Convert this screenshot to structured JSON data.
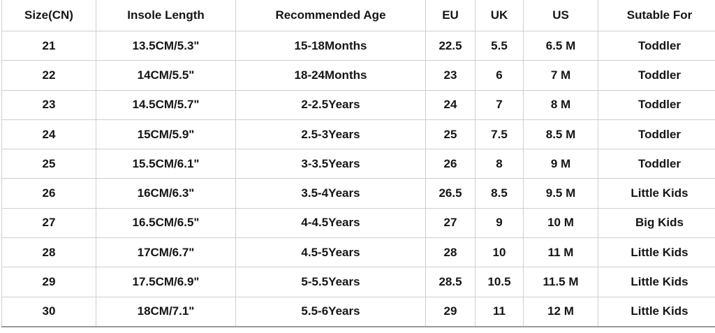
{
  "headers": [
    "Size(CN)",
    "Insole Length",
    "Recommended Age",
    "EU",
    "UK",
    "US",
    "Sutable For"
  ],
  "rows": [
    [
      "21",
      "13.5CM/5.3\"",
      "15-18Months",
      "22.5",
      "5.5",
      "6.5 M",
      "Toddler"
    ],
    [
      "22",
      "14CM/5.5\"",
      "18-24Months",
      "23",
      "6",
      "7 M",
      "Toddler"
    ],
    [
      "23",
      "14.5CM/5.7\"",
      "2-2.5Years",
      "24",
      "7",
      "8 M",
      "Toddler"
    ],
    [
      "24",
      "15CM/5.9\"",
      "2.5-3Years",
      "25",
      "7.5",
      "8.5 M",
      "Toddler"
    ],
    [
      "25",
      "15.5CM/6.1\"",
      "3-3.5Years",
      "26",
      "8",
      "9 M",
      "Toddler"
    ],
    [
      "26",
      "16CM/6.3\"",
      "3.5-4Years",
      "26.5",
      "8.5",
      "9.5 M",
      "Little Kids"
    ],
    [
      "27",
      "16.5CM/6.5\"",
      "4-4.5Years",
      "27",
      "9",
      "10 M",
      "Big Kids"
    ],
    [
      "28",
      "17CM/6.7\"",
      "4.5-5Years",
      "28",
      "10",
      "11 M",
      "Little Kids"
    ],
    [
      "29",
      "17.5CM/6.9\"",
      "5-5.5Years",
      "28.5",
      "10.5",
      "11.5 M",
      "Little Kids"
    ],
    [
      "30",
      "18CM/7.1\"",
      "5.5-6Years",
      "29",
      "11",
      "12 M",
      "Little Kids"
    ]
  ]
}
